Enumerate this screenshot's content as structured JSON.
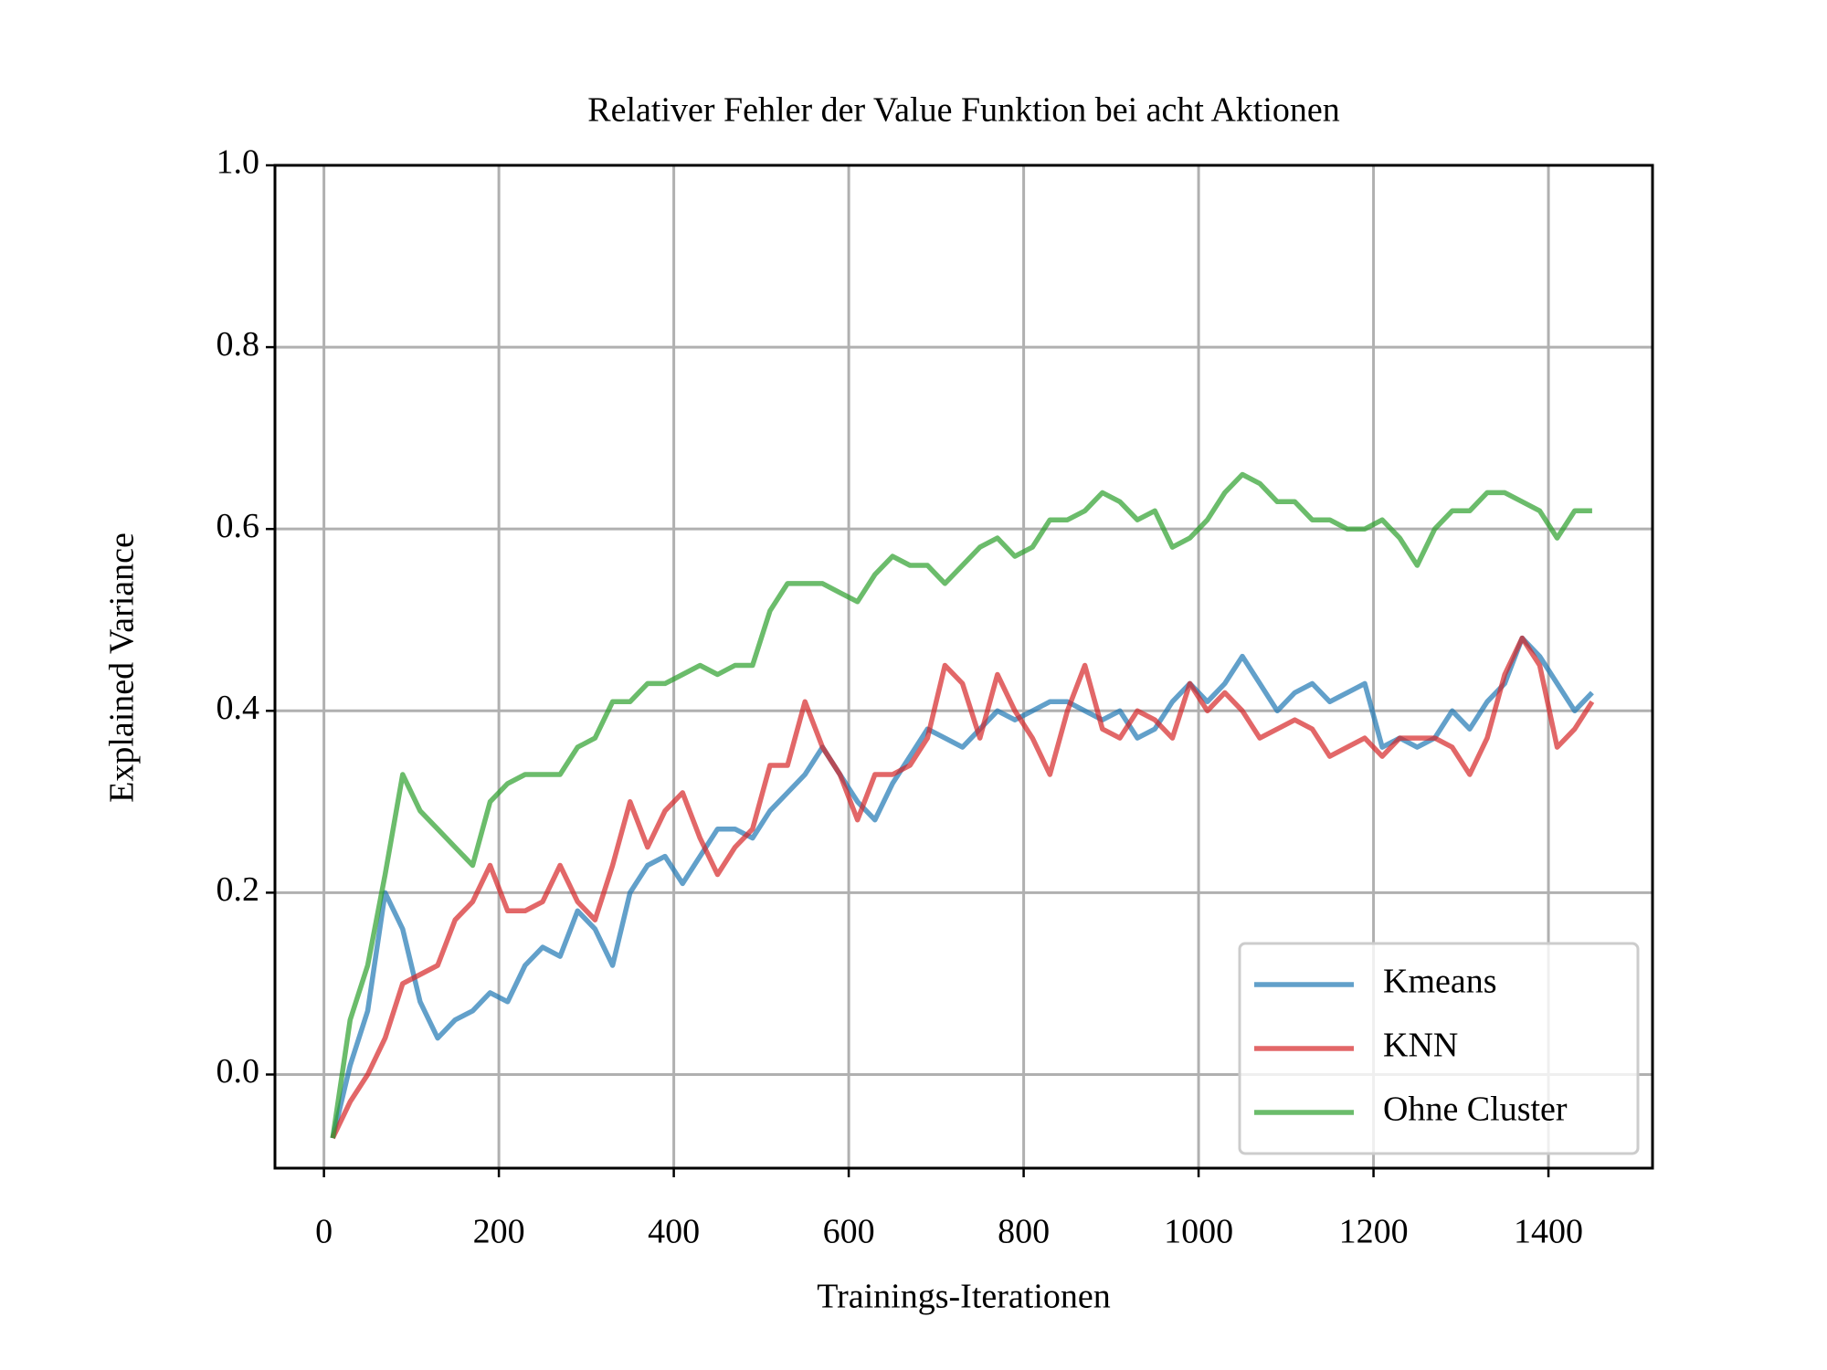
{
  "chart_data": {
    "type": "line",
    "title": "Relativer Fehler der Value Funktion bei acht Aktionen",
    "xlabel": "Trainings-Iterationen",
    "ylabel": "Explained Variance",
    "x": [
      10,
      30,
      50,
      70,
      90,
      110,
      130,
      150,
      170,
      190,
      210,
      230,
      250,
      270,
      290,
      310,
      330,
      350,
      370,
      390,
      410,
      430,
      450,
      470,
      490,
      510,
      530,
      550,
      570,
      590,
      610,
      630,
      650,
      670,
      690,
      710,
      730,
      750,
      770,
      790,
      810,
      830,
      850,
      870,
      890,
      910,
      930,
      950,
      970,
      990,
      1010,
      1030,
      1050,
      1070,
      1090,
      1110,
      1130,
      1150,
      1170,
      1190,
      1210,
      1230,
      1250,
      1270,
      1290,
      1310,
      1330,
      1350,
      1370,
      1390,
      1410,
      1430,
      1450
    ],
    "series": [
      {
        "name": "Kmeans",
        "color": "#1f77b4",
        "values": [
          -0.07,
          0.01,
          0.07,
          0.2,
          0.16,
          0.08,
          0.04,
          0.06,
          0.07,
          0.09,
          0.08,
          0.12,
          0.14,
          0.13,
          0.18,
          0.16,
          0.12,
          0.2,
          0.23,
          0.24,
          0.21,
          0.24,
          0.27,
          0.27,
          0.26,
          0.29,
          0.31,
          0.33,
          0.36,
          0.33,
          0.3,
          0.28,
          0.32,
          0.35,
          0.38,
          0.37,
          0.36,
          0.38,
          0.4,
          0.39,
          0.4,
          0.41,
          0.41,
          0.4,
          0.39,
          0.4,
          0.37,
          0.38,
          0.41,
          0.43,
          0.41,
          0.43,
          0.46,
          0.43,
          0.4,
          0.42,
          0.43,
          0.41,
          0.42,
          0.43,
          0.36,
          0.37,
          0.36,
          0.37,
          0.4,
          0.38,
          0.41,
          0.43,
          0.48,
          0.46,
          0.43,
          0.4,
          0.42
        ]
      },
      {
        "name": "KNN",
        "color": "#d62728",
        "values": [
          -0.07,
          -0.03,
          0.0,
          0.04,
          0.1,
          0.11,
          0.12,
          0.17,
          0.19,
          0.23,
          0.18,
          0.18,
          0.19,
          0.23,
          0.19,
          0.17,
          0.23,
          0.3,
          0.25,
          0.29,
          0.31,
          0.26,
          0.22,
          0.25,
          0.27,
          0.34,
          0.34,
          0.41,
          0.36,
          0.33,
          0.28,
          0.33,
          0.33,
          0.34,
          0.37,
          0.45,
          0.43,
          0.37,
          0.44,
          0.4,
          0.37,
          0.33,
          0.4,
          0.45,
          0.38,
          0.37,
          0.4,
          0.39,
          0.37,
          0.43,
          0.4,
          0.42,
          0.4,
          0.37,
          0.38,
          0.39,
          0.38,
          0.35,
          0.36,
          0.37,
          0.35,
          0.37,
          0.37,
          0.37,
          0.36,
          0.33,
          0.37,
          0.44,
          0.48,
          0.45,
          0.36,
          0.38,
          0.41
        ]
      },
      {
        "name": "Ohne Cluster",
        "color": "#2ca02c",
        "values": [
          -0.07,
          0.06,
          0.12,
          0.22,
          0.33,
          0.29,
          0.27,
          0.25,
          0.23,
          0.3,
          0.32,
          0.33,
          0.33,
          0.33,
          0.36,
          0.37,
          0.41,
          0.41,
          0.43,
          0.43,
          0.44,
          0.45,
          0.44,
          0.45,
          0.45,
          0.51,
          0.54,
          0.54,
          0.54,
          0.53,
          0.52,
          0.55,
          0.57,
          0.56,
          0.56,
          0.54,
          0.56,
          0.58,
          0.59,
          0.57,
          0.58,
          0.61,
          0.61,
          0.62,
          0.64,
          0.63,
          0.61,
          0.62,
          0.58,
          0.59,
          0.61,
          0.64,
          0.66,
          0.65,
          0.63,
          0.63,
          0.61,
          0.61,
          0.6,
          0.6,
          0.61,
          0.59,
          0.56,
          0.6,
          0.62,
          0.62,
          0.64,
          0.64,
          0.63,
          0.62,
          0.59,
          0.62,
          0.62
        ]
      }
    ],
    "xlim": [
      -56,
      1519
    ],
    "ylim": [
      -0.103,
      1.0
    ],
    "xticks": [
      0,
      200,
      400,
      600,
      800,
      1000,
      1200,
      1400
    ],
    "yticks": [
      {
        "value": 0,
        "label": "0.0"
      },
      0.2,
      0.4,
      0.6,
      0.8,
      {
        "value": 1,
        "label": "1.0"
      }
    ],
    "grid": true,
    "legend": "lower right"
  }
}
